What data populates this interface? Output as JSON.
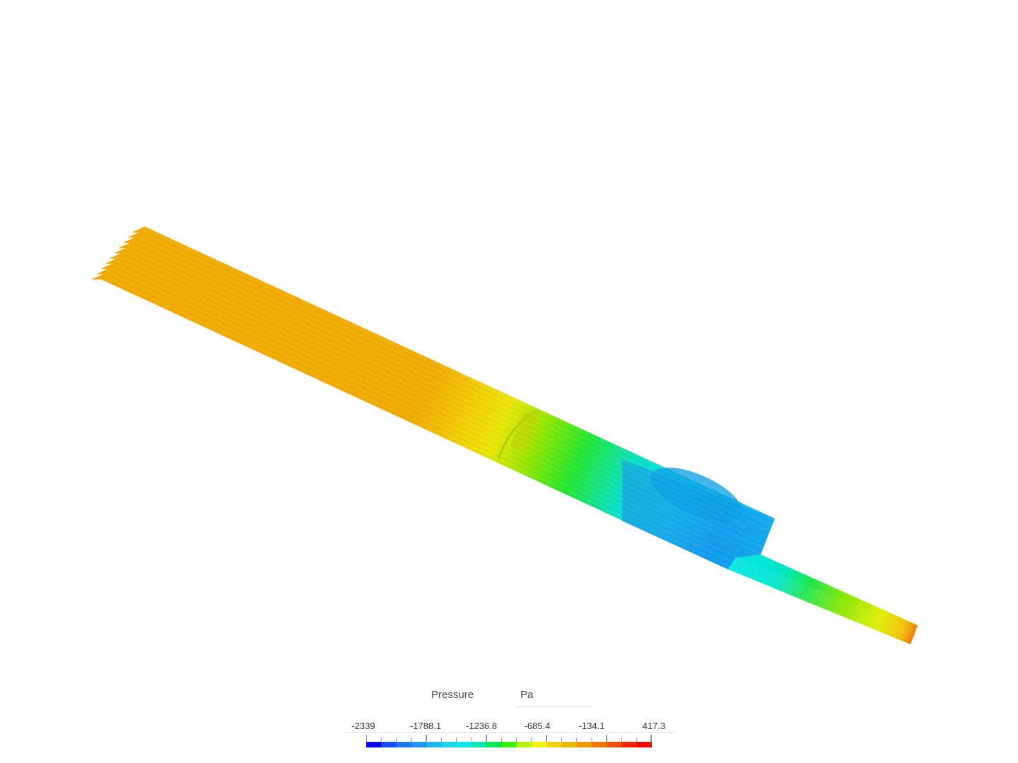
{
  "legend": {
    "quantity": "Pressure",
    "unit": "Pa",
    "ticks": [
      "-2339",
      "-1788.1",
      "-1236.8",
      "-685.4",
      "-134.1",
      "417.3"
    ],
    "min": -2339,
    "max": 417.3,
    "colors": [
      "#0a0af0",
      "#1650f5",
      "#1e78f0",
      "#1e96f0",
      "#1eb4f0",
      "#1ed2f0",
      "#00e6e6",
      "#00e6b4",
      "#00e650",
      "#3cf000",
      "#b4f000",
      "#f0f000",
      "#f0d200",
      "#f0b400",
      "#f09600",
      "#f07800",
      "#f05000",
      "#f02800",
      "#f00000"
    ]
  }
}
